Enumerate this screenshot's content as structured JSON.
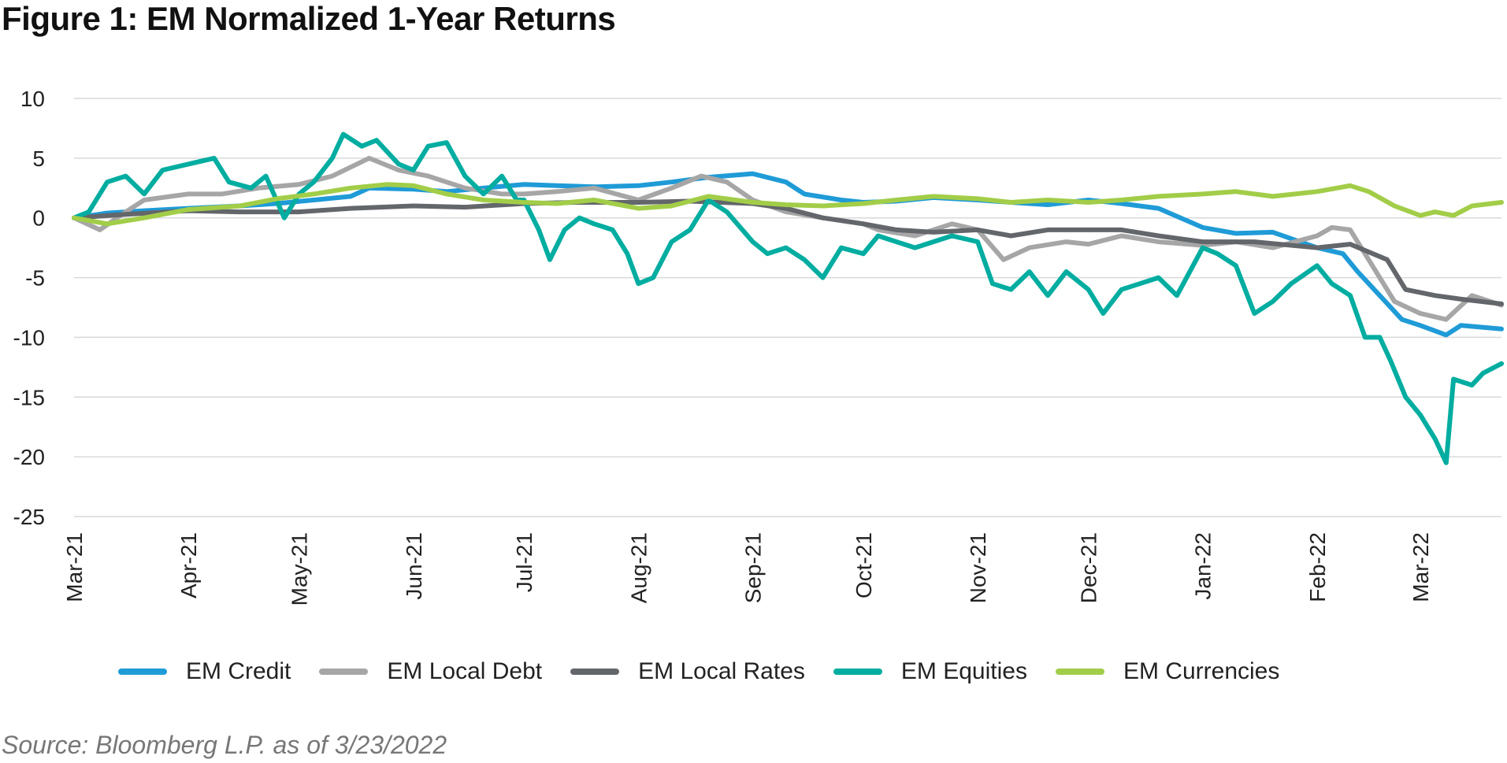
{
  "title": "Figure 1: EM Normalized 1-Year Returns",
  "source": "Source: Bloomberg L.P. as of 3/23/2022",
  "chart_data": {
    "type": "line",
    "title": "Figure 1: EM Normalized 1-Year Returns",
    "xlabel": "",
    "ylabel": "",
    "ylim": [
      -25,
      10
    ],
    "xlim": [
      "2021-03-01",
      "2022-03-23"
    ],
    "yticks": [
      10,
      5,
      0,
      -5,
      -10,
      -15,
      -20,
      -25
    ],
    "xticks": [
      {
        "label": "Mar-21",
        "date": "2021-03-01"
      },
      {
        "label": "Apr-21",
        "date": "2021-04-01"
      },
      {
        "label": "May-21",
        "date": "2021-05-01"
      },
      {
        "label": "Jun-21",
        "date": "2021-06-01"
      },
      {
        "label": "Jul-21",
        "date": "2021-07-01"
      },
      {
        "label": "Aug-21",
        "date": "2021-08-01"
      },
      {
        "label": "Sep-21",
        "date": "2021-09-01"
      },
      {
        "label": "Oct-21",
        "date": "2021-10-01"
      },
      {
        "label": "Nov-21",
        "date": "2021-11-01"
      },
      {
        "label": "Dec-21",
        "date": "2021-12-01"
      },
      {
        "label": "Jan-22",
        "date": "2022-01-01"
      },
      {
        "label": "Feb-22",
        "date": "2022-02-01"
      },
      {
        "label": "Mar-22",
        "date": "2022-03-01"
      }
    ],
    "grid": true,
    "legend_position": "bottom",
    "series": [
      {
        "name": "EM Credit",
        "color": "#1f9bd7",
        "points": [
          [
            "2021-03-01",
            0
          ],
          [
            "2021-03-10",
            0.4
          ],
          [
            "2021-03-20",
            0.6
          ],
          [
            "2021-04-01",
            0.8
          ],
          [
            "2021-04-15",
            1.0
          ],
          [
            "2021-04-25",
            1.2
          ],
          [
            "2021-05-05",
            1.5
          ],
          [
            "2021-05-15",
            1.8
          ],
          [
            "2021-05-20",
            2.5
          ],
          [
            "2021-06-01",
            2.4
          ],
          [
            "2021-06-10",
            2.2
          ],
          [
            "2021-06-20",
            2.5
          ],
          [
            "2021-07-01",
            2.8
          ],
          [
            "2021-07-10",
            2.7
          ],
          [
            "2021-07-20",
            2.6
          ],
          [
            "2021-08-01",
            2.7
          ],
          [
            "2021-08-10",
            3.0
          ],
          [
            "2021-08-20",
            3.4
          ],
          [
            "2021-09-01",
            3.7
          ],
          [
            "2021-09-10",
            3.0
          ],
          [
            "2021-09-15",
            2.0
          ],
          [
            "2021-09-25",
            1.5
          ],
          [
            "2021-10-01",
            1.3
          ],
          [
            "2021-10-10",
            1.4
          ],
          [
            "2021-10-20",
            1.7
          ],
          [
            "2021-11-01",
            1.5
          ],
          [
            "2021-11-10",
            1.3
          ],
          [
            "2021-11-20",
            1.1
          ],
          [
            "2021-12-01",
            1.5
          ],
          [
            "2021-12-10",
            1.2
          ],
          [
            "2021-12-20",
            0.8
          ],
          [
            "2022-01-01",
            -0.8
          ],
          [
            "2022-01-10",
            -1.3
          ],
          [
            "2022-01-20",
            -1.2
          ],
          [
            "2022-02-01",
            -2.5
          ],
          [
            "2022-02-08",
            -3.0
          ],
          [
            "2022-02-12",
            -4.5
          ],
          [
            "2022-02-18",
            -6.5
          ],
          [
            "2022-02-24",
            -8.5
          ],
          [
            "2022-03-01",
            -9.0
          ],
          [
            "2022-03-08",
            -9.8
          ],
          [
            "2022-03-12",
            -9.0
          ],
          [
            "2022-03-23",
            -9.3
          ]
        ]
      },
      {
        "name": "EM Local Debt",
        "color": "#a6a6a6",
        "points": [
          [
            "2021-03-01",
            0
          ],
          [
            "2021-03-08",
            -1.0
          ],
          [
            "2021-03-15",
            0.5
          ],
          [
            "2021-03-20",
            1.5
          ],
          [
            "2021-04-01",
            2.0
          ],
          [
            "2021-04-10",
            2.0
          ],
          [
            "2021-04-20",
            2.5
          ],
          [
            "2021-05-01",
            2.8
          ],
          [
            "2021-05-10",
            3.5
          ],
          [
            "2021-05-20",
            5.0
          ],
          [
            "2021-05-28",
            4.0
          ],
          [
            "2021-06-05",
            3.5
          ],
          [
            "2021-06-15",
            2.5
          ],
          [
            "2021-06-25",
            2.0
          ],
          [
            "2021-07-01",
            2.0
          ],
          [
            "2021-07-10",
            2.2
          ],
          [
            "2021-07-20",
            2.5
          ],
          [
            "2021-08-01",
            1.5
          ],
          [
            "2021-08-10",
            2.5
          ],
          [
            "2021-08-18",
            3.5
          ],
          [
            "2021-08-25",
            3.0
          ],
          [
            "2021-09-01",
            1.5
          ],
          [
            "2021-09-10",
            0.5
          ],
          [
            "2021-09-20",
            0.0
          ],
          [
            "2021-10-01",
            -0.5
          ],
          [
            "2021-10-05",
            -1.0
          ],
          [
            "2021-10-15",
            -1.5
          ],
          [
            "2021-10-25",
            -0.5
          ],
          [
            "2021-11-01",
            -1.0
          ],
          [
            "2021-11-08",
            -3.5
          ],
          [
            "2021-11-15",
            -2.5
          ],
          [
            "2021-11-25",
            -2.0
          ],
          [
            "2021-12-01",
            -2.2
          ],
          [
            "2021-12-10",
            -1.5
          ],
          [
            "2021-12-20",
            -2.0
          ],
          [
            "2022-01-01",
            -2.3
          ],
          [
            "2022-01-10",
            -2.0
          ],
          [
            "2022-01-20",
            -2.5
          ],
          [
            "2022-02-01",
            -1.5
          ],
          [
            "2022-02-05",
            -0.8
          ],
          [
            "2022-02-10",
            -1.0
          ],
          [
            "2022-02-15",
            -3.5
          ],
          [
            "2022-02-22",
            -7.0
          ],
          [
            "2022-03-01",
            -8.0
          ],
          [
            "2022-03-08",
            -8.5
          ],
          [
            "2022-03-15",
            -6.5
          ],
          [
            "2022-03-23",
            -7.3
          ]
        ]
      },
      {
        "name": "EM Local Rates",
        "color": "#63666a",
        "points": [
          [
            "2021-03-01",
            0
          ],
          [
            "2021-03-15",
            0.3
          ],
          [
            "2021-04-01",
            0.6
          ],
          [
            "2021-04-15",
            0.5
          ],
          [
            "2021-05-01",
            0.5
          ],
          [
            "2021-05-15",
            0.8
          ],
          [
            "2021-06-01",
            1.0
          ],
          [
            "2021-06-15",
            0.9
          ],
          [
            "2021-07-01",
            1.2
          ],
          [
            "2021-07-15",
            1.3
          ],
          [
            "2021-08-01",
            1.3
          ],
          [
            "2021-08-15",
            1.4
          ],
          [
            "2021-09-01",
            1.2
          ],
          [
            "2021-09-10",
            0.8
          ],
          [
            "2021-09-20",
            0.0
          ],
          [
            "2021-10-01",
            -0.5
          ],
          [
            "2021-10-10",
            -1.0
          ],
          [
            "2021-10-20",
            -1.2
          ],
          [
            "2021-11-01",
            -1.0
          ],
          [
            "2021-11-10",
            -1.5
          ],
          [
            "2021-11-20",
            -1.0
          ],
          [
            "2021-12-01",
            -1.0
          ],
          [
            "2021-12-10",
            -1.0
          ],
          [
            "2021-12-20",
            -1.5
          ],
          [
            "2022-01-01",
            -2.0
          ],
          [
            "2022-01-15",
            -2.0
          ],
          [
            "2022-02-01",
            -2.5
          ],
          [
            "2022-02-10",
            -2.2
          ],
          [
            "2022-02-20",
            -3.5
          ],
          [
            "2022-02-25",
            -6.0
          ],
          [
            "2022-03-05",
            -6.5
          ],
          [
            "2022-03-12",
            -6.8
          ],
          [
            "2022-03-23",
            -7.2
          ]
        ]
      },
      {
        "name": "EM Equities",
        "color": "#00ada0",
        "points": [
          [
            "2021-03-01",
            0
          ],
          [
            "2021-03-05",
            0.5
          ],
          [
            "2021-03-10",
            3.0
          ],
          [
            "2021-03-15",
            3.5
          ],
          [
            "2021-03-20",
            2.0
          ],
          [
            "2021-03-25",
            4.0
          ],
          [
            "2021-04-01",
            4.5
          ],
          [
            "2021-04-08",
            5.0
          ],
          [
            "2021-04-12",
            3.0
          ],
          [
            "2021-04-18",
            2.5
          ],
          [
            "2021-04-22",
            3.5
          ],
          [
            "2021-04-27",
            0.0
          ],
          [
            "2021-05-01",
            2.0
          ],
          [
            "2021-05-05",
            3.0
          ],
          [
            "2021-05-10",
            5.0
          ],
          [
            "2021-05-13",
            7.0
          ],
          [
            "2021-05-18",
            6.0
          ],
          [
            "2021-05-22",
            6.5
          ],
          [
            "2021-05-28",
            4.5
          ],
          [
            "2021-06-01",
            4.0
          ],
          [
            "2021-06-05",
            6.0
          ],
          [
            "2021-06-10",
            6.3
          ],
          [
            "2021-06-15",
            3.5
          ],
          [
            "2021-06-20",
            2.0
          ],
          [
            "2021-06-25",
            3.5
          ],
          [
            "2021-06-29",
            1.5
          ],
          [
            "2021-07-01",
            1.5
          ],
          [
            "2021-07-05",
            -1.0
          ],
          [
            "2021-07-08",
            -3.5
          ],
          [
            "2021-07-12",
            -1.0
          ],
          [
            "2021-07-16",
            0.0
          ],
          [
            "2021-07-20",
            -0.5
          ],
          [
            "2021-07-25",
            -1.0
          ],
          [
            "2021-07-29",
            -3.0
          ],
          [
            "2021-08-01",
            -5.5
          ],
          [
            "2021-08-05",
            -5.0
          ],
          [
            "2021-08-10",
            -2.0
          ],
          [
            "2021-08-15",
            -1.0
          ],
          [
            "2021-08-20",
            1.5
          ],
          [
            "2021-08-25",
            0.5
          ],
          [
            "2021-09-01",
            -2.0
          ],
          [
            "2021-09-05",
            -3.0
          ],
          [
            "2021-09-10",
            -2.5
          ],
          [
            "2021-09-15",
            -3.5
          ],
          [
            "2021-09-20",
            -5.0
          ],
          [
            "2021-09-25",
            -2.5
          ],
          [
            "2021-10-01",
            -3.0
          ],
          [
            "2021-10-05",
            -1.5
          ],
          [
            "2021-10-10",
            -2.0
          ],
          [
            "2021-10-15",
            -2.5
          ],
          [
            "2021-10-25",
            -1.5
          ],
          [
            "2021-11-01",
            -2.0
          ],
          [
            "2021-11-05",
            -5.5
          ],
          [
            "2021-11-10",
            -6.0
          ],
          [
            "2021-11-15",
            -4.5
          ],
          [
            "2021-11-20",
            -6.5
          ],
          [
            "2021-11-25",
            -4.5
          ],
          [
            "2021-12-01",
            -6.0
          ],
          [
            "2021-12-05",
            -8.0
          ],
          [
            "2021-12-10",
            -6.0
          ],
          [
            "2021-12-15",
            -5.5
          ],
          [
            "2021-12-20",
            -5.0
          ],
          [
            "2021-12-25",
            -6.5
          ],
          [
            "2022-01-01",
            -2.5
          ],
          [
            "2022-01-05",
            -3.0
          ],
          [
            "2022-01-10",
            -4.0
          ],
          [
            "2022-01-15",
            -8.0
          ],
          [
            "2022-01-20",
            -7.0
          ],
          [
            "2022-01-25",
            -5.5
          ],
          [
            "2022-02-01",
            -4.0
          ],
          [
            "2022-02-05",
            -5.5
          ],
          [
            "2022-02-10",
            -6.5
          ],
          [
            "2022-02-14",
            -10.0
          ],
          [
            "2022-02-18",
            -10.0
          ],
          [
            "2022-02-21",
            -12.0
          ],
          [
            "2022-02-25",
            -15.0
          ],
          [
            "2022-03-01",
            -16.5
          ],
          [
            "2022-03-05",
            -18.5
          ],
          [
            "2022-03-08",
            -20.5
          ],
          [
            "2022-03-10",
            -13.5
          ],
          [
            "2022-03-15",
            -14.0
          ],
          [
            "2022-03-18",
            -13.0
          ],
          [
            "2022-03-23",
            -12.2
          ]
        ]
      },
      {
        "name": "EM Currencies",
        "color": "#a2cd48",
        "points": [
          [
            "2021-03-01",
            0
          ],
          [
            "2021-03-10",
            -0.5
          ],
          [
            "2021-03-20",
            0.0
          ],
          [
            "2021-04-01",
            0.7
          ],
          [
            "2021-04-15",
            1.0
          ],
          [
            "2021-04-25",
            1.6
          ],
          [
            "2021-05-05",
            2.0
          ],
          [
            "2021-05-15",
            2.5
          ],
          [
            "2021-05-25",
            2.8
          ],
          [
            "2021-06-01",
            2.7
          ],
          [
            "2021-06-10",
            2.0
          ],
          [
            "2021-06-20",
            1.5
          ],
          [
            "2021-07-01",
            1.3
          ],
          [
            "2021-07-10",
            1.2
          ],
          [
            "2021-07-20",
            1.5
          ],
          [
            "2021-08-01",
            0.8
          ],
          [
            "2021-08-10",
            1.0
          ],
          [
            "2021-08-20",
            1.8
          ],
          [
            "2021-09-01",
            1.3
          ],
          [
            "2021-09-10",
            1.1
          ],
          [
            "2021-09-20",
            1.0
          ],
          [
            "2021-10-01",
            1.2
          ],
          [
            "2021-10-10",
            1.5
          ],
          [
            "2021-10-20",
            1.8
          ],
          [
            "2021-11-01",
            1.6
          ],
          [
            "2021-11-10",
            1.3
          ],
          [
            "2021-11-20",
            1.5
          ],
          [
            "2021-12-01",
            1.3
          ],
          [
            "2021-12-10",
            1.5
          ],
          [
            "2021-12-20",
            1.8
          ],
          [
            "2022-01-01",
            2.0
          ],
          [
            "2022-01-10",
            2.2
          ],
          [
            "2022-01-20",
            1.8
          ],
          [
            "2022-02-01",
            2.2
          ],
          [
            "2022-02-10",
            2.7
          ],
          [
            "2022-02-15",
            2.2
          ],
          [
            "2022-02-22",
            1.0
          ],
          [
            "2022-03-01",
            0.2
          ],
          [
            "2022-03-05",
            0.5
          ],
          [
            "2022-03-10",
            0.2
          ],
          [
            "2022-03-15",
            1.0
          ],
          [
            "2022-03-23",
            1.3
          ]
        ]
      }
    ]
  }
}
